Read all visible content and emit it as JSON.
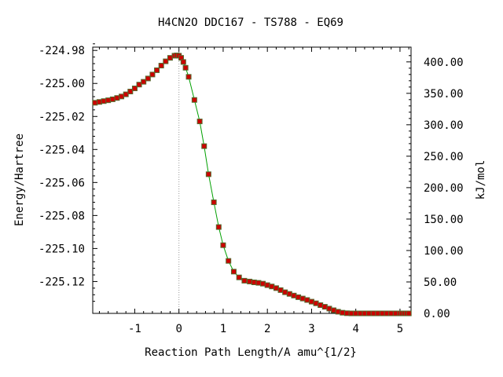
{
  "chart_data": {
    "type": "line",
    "title": "H4CN2O   DDC167 - TS788 - EQ69",
    "xlabel": "Reaction Path Length/A amu^{1/2}",
    "ylabel": "Energy/Hartree",
    "y2label": "kJ/mol",
    "xlim": [
      -1.95,
      5.25
    ],
    "ylim": [
      -225.1393,
      -224.978
    ],
    "xticks": [
      {
        "v": -1,
        "label": "-1"
      },
      {
        "v": 0,
        "label": "0"
      },
      {
        "v": 1,
        "label": "1"
      },
      {
        "v": 2,
        "label": "2"
      },
      {
        "v": 3,
        "label": "3"
      },
      {
        "v": 4,
        "label": "4"
      },
      {
        "v": 5,
        "label": "5"
      }
    ],
    "yticks": [
      {
        "v": -224.98,
        "label": "-224.98"
      },
      {
        "v": -225.0,
        "label": "-225.00"
      },
      {
        "v": -225.02,
        "label": "-225.02"
      },
      {
        "v": -225.04,
        "label": "-225.04"
      },
      {
        "v": -225.06,
        "label": "-225.06"
      },
      {
        "v": -225.08,
        "label": "-225.08"
      },
      {
        "v": -225.1,
        "label": "-225.10"
      },
      {
        "v": -225.12,
        "label": "-225.12"
      }
    ],
    "y2ref_hartree": -225.1393,
    "y2ticks": [
      {
        "v": 0,
        "label": "0.00"
      },
      {
        "v": 50,
        "label": "50.00"
      },
      {
        "v": 100,
        "label": "100.00"
      },
      {
        "v": 150,
        "label": "150.00"
      },
      {
        "v": 200,
        "label": "200.00"
      },
      {
        "v": 250,
        "label": "250.00"
      },
      {
        "v": 300,
        "label": "300.00"
      },
      {
        "v": 350,
        "label": "350.00"
      },
      {
        "v": 400,
        "label": "400.00"
      }
    ],
    "ts_x": 0,
    "line_color": "#00a000",
    "marker_color": "#cc0000",
    "marker_border": "#556b2f",
    "series": [
      {
        "x": [
          -1.9,
          -1.8,
          -1.7,
          -1.6,
          -1.5,
          -1.4,
          -1.3,
          -1.2,
          -1.1,
          -1.0,
          -0.9,
          -0.8,
          -0.7,
          -0.6,
          -0.5,
          -0.4,
          -0.3,
          -0.2,
          -0.1,
          -0.05,
          0,
          0.05,
          0.1,
          0.15,
          0.22,
          0.35,
          0.47,
          0.57,
          0.67,
          0.79,
          0.9,
          1.0,
          1.12,
          1.24,
          1.36,
          1.48,
          1.6,
          1.7,
          1.8,
          1.9,
          2.0,
          2.1,
          2.2,
          2.3,
          2.4,
          2.5,
          2.6,
          2.7,
          2.8,
          2.9,
          3.0,
          3.1,
          3.2,
          3.3,
          3.4,
          3.5,
          3.6,
          3.7,
          3.8,
          3.9,
          4.0,
          4.1,
          4.2,
          4.3,
          4.4,
          4.5,
          4.6,
          4.7,
          4.8,
          4.9,
          5.0,
          5.05,
          5.1,
          5.15,
          5.2
        ],
        "y": [
          -225.0117,
          -225.0112,
          -225.0107,
          -225.0102,
          -225.0096,
          -225.0088,
          -225.0079,
          -225.0066,
          -225.0049,
          -225.003,
          -225.0007,
          -224.999,
          -224.997,
          -224.9946,
          -224.992,
          -224.9892,
          -224.9866,
          -224.9845,
          -224.9832,
          -224.983,
          -224.9832,
          -224.9845,
          -224.987,
          -224.9905,
          -224.996,
          -225.01,
          -225.023,
          -225.038,
          -225.055,
          -225.072,
          -225.087,
          -225.098,
          -225.1075,
          -225.114,
          -225.1175,
          -225.1195,
          -225.12,
          -225.1205,
          -225.1208,
          -225.1213,
          -225.1222,
          -225.123,
          -225.124,
          -225.1252,
          -225.1265,
          -225.1275,
          -225.1285,
          -225.1295,
          -225.1303,
          -225.1312,
          -225.1322,
          -225.1332,
          -225.1343,
          -225.1353,
          -225.1364,
          -225.1374,
          -225.1383,
          -225.1389,
          -225.1392,
          -225.1393,
          -225.1393,
          -225.1393,
          -225.1393,
          -225.1393,
          -225.1393,
          -225.1393,
          -225.1393,
          -225.1393,
          -225.1393,
          -225.1393,
          -225.1393,
          -225.1393,
          -225.1393,
          -225.1393,
          -225.1393
        ]
      }
    ]
  }
}
